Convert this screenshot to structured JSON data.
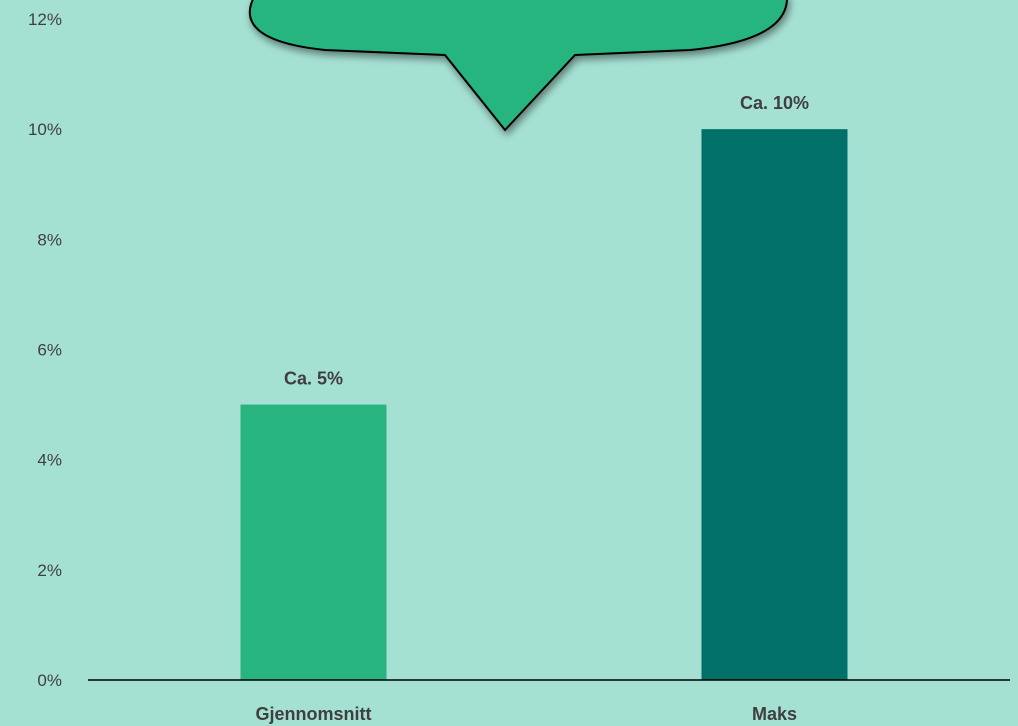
{
  "colors": {
    "background": "#a5e1d3",
    "bubble": "#27b47f",
    "axis": "#000000",
    "text": "#3f3f3f"
  },
  "chart_data": {
    "type": "bar",
    "categories": [
      "Gjennomsnitt",
      "Maks"
    ],
    "values": [
      5,
      10
    ],
    "data_labels": [
      "Ca. 5%",
      "Ca. 10%"
    ],
    "bar_colors": [
      "#27b47f",
      "#007068"
    ],
    "ylim": [
      0,
      12
    ],
    "y_ticks": [
      0,
      2,
      4,
      6,
      8,
      10,
      12
    ],
    "y_tick_format": "percent",
    "grid": false,
    "legend": false,
    "title": "",
    "xlabel": "",
    "ylabel": ""
  }
}
